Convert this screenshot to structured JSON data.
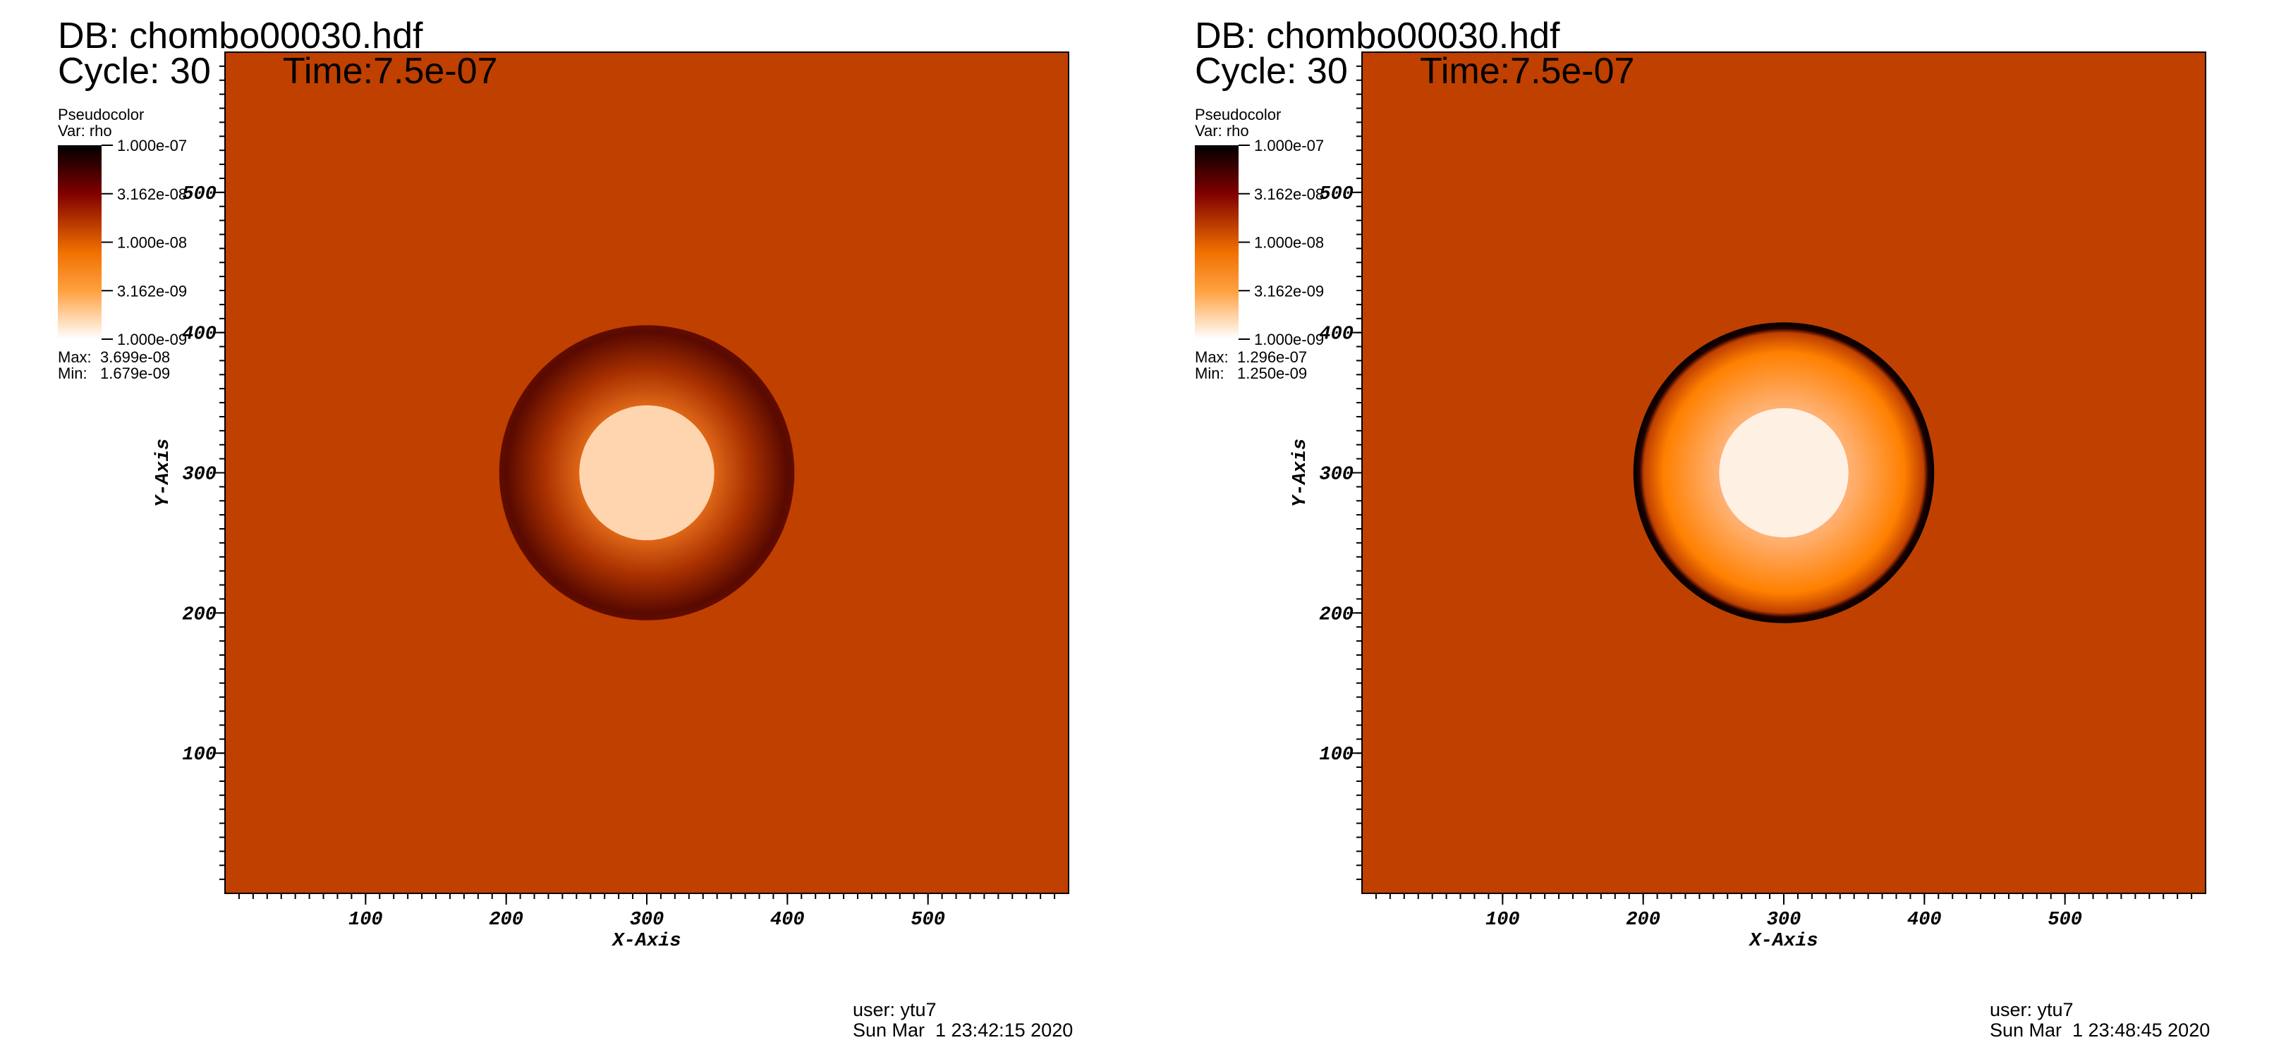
{
  "chart_data": [
    {
      "type": "pseudocolor",
      "database": "DB: chombo00030.hdf",
      "cycle": "Cycle: 30",
      "time": "Time:7.5e-07",
      "legend_title": "Pseudocolor",
      "variable": "Var: rho",
      "colorbar_ticks": [
        {
          "value": 1e-07,
          "label": "1.000e-07"
        },
        {
          "value": 3.162e-08,
          "label": "3.162e-08"
        },
        {
          "value": 1e-08,
          "label": "1.000e-08"
        },
        {
          "value": 3.162e-09,
          "label": "3.162e-09"
        },
        {
          "value": 1e-09,
          "label": "1.000e-09"
        }
      ],
      "max_label": "Max:",
      "max": {
        "value": 3.699e-08,
        "label": "3.699e-08"
      },
      "min_label": "Min:",
      "min": {
        "value": 1.679e-09,
        "label": "1.679e-09"
      },
      "xlabel": "X-Axis",
      "ylabel": "Y-Axis",
      "xlim": [
        0,
        600
      ],
      "ylim": [
        0,
        600
      ],
      "xticks": [
        100,
        200,
        300,
        400,
        500
      ],
      "yticks": [
        100,
        200,
        300,
        400,
        500
      ],
      "user": "user: ytu7",
      "timestamp": "Sun Mar  1 23:42:15 2020"
    },
    {
      "type": "pseudocolor",
      "database": "DB: chombo00030.hdf",
      "cycle": "Cycle: 30",
      "time": "Time:7.5e-07",
      "legend_title": "Pseudocolor",
      "variable": "Var: rho",
      "colorbar_ticks": [
        {
          "value": 1e-07,
          "label": "1.000e-07"
        },
        {
          "value": 3.162e-08,
          "label": "3.162e-08"
        },
        {
          "value": 1e-08,
          "label": "1.000e-08"
        },
        {
          "value": 3.162e-09,
          "label": "3.162e-09"
        },
        {
          "value": 1e-09,
          "label": "1.000e-09"
        }
      ],
      "max_label": "Max:",
      "max": {
        "value": 1.296e-07,
        "label": "1.296e-07"
      },
      "min_label": "Min:",
      "min": {
        "value": 1.25e-09,
        "label": "1.250e-09"
      },
      "xlabel": "X-Axis",
      "ylabel": "Y-Axis",
      "xlim": [
        0,
        600
      ],
      "ylim": [
        0,
        600
      ],
      "xticks": [
        100,
        200,
        300,
        400,
        500
      ],
      "yticks": [
        100,
        200,
        300,
        400,
        500
      ],
      "user": "user: ytu7",
      "timestamp": "Sun Mar  1 23:48:45 2020"
    }
  ]
}
